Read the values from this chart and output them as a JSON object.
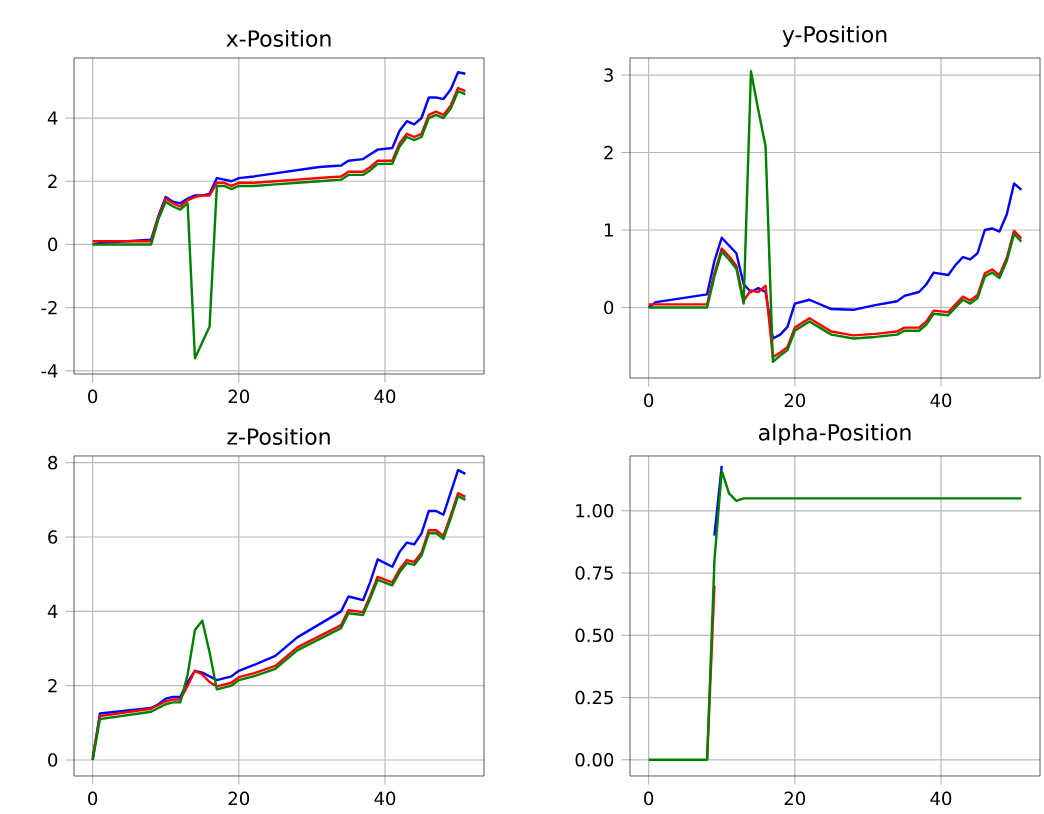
{
  "chart_data": [
    {
      "type": "line",
      "title": "x-Position",
      "grid": true,
      "xlim": [
        -2.55,
        53.55
      ],
      "ylim": [
        -4.1,
        5.9
      ],
      "xticks": [
        0,
        20,
        40
      ],
      "yticks": [
        -4,
        -2,
        0,
        2,
        4
      ],
      "x": [
        0,
        1,
        8,
        9,
        10,
        11,
        12,
        13,
        14,
        15,
        16,
        17,
        18,
        19,
        20,
        22,
        25,
        28,
        31,
        34,
        35,
        37,
        38,
        39,
        41,
        42,
        43,
        44,
        45,
        46,
        47,
        48,
        49,
        50,
        51
      ],
      "series": [
        {
          "color": "#0000ff",
          "values": [
            0,
            0.05,
            0.15,
            0.9,
            1.5,
            1.35,
            1.3,
            1.45,
            1.55,
            1.55,
            1.6,
            2.1,
            2.05,
            2.0,
            2.1,
            2.15,
            2.25,
            2.35,
            2.45,
            2.5,
            2.65,
            2.7,
            2.85,
            3.0,
            3.05,
            3.6,
            3.9,
            3.8,
            4.0,
            4.65,
            4.65,
            4.6,
            4.9,
            5.45,
            5.4
          ]
        },
        {
          "color": "#ff0000",
          "values": [
            0.1,
            0.1,
            0.1,
            0.85,
            1.45,
            1.3,
            1.2,
            1.4,
            1.5,
            1.55,
            1.55,
            1.95,
            1.95,
            1.85,
            1.95,
            1.95,
            2.0,
            2.05,
            2.1,
            2.15,
            2.3,
            2.3,
            2.45,
            2.65,
            2.65,
            3.2,
            3.5,
            3.4,
            3.5,
            4.1,
            4.2,
            4.1,
            4.4,
            4.95,
            4.85
          ]
        },
        {
          "color": "#008000",
          "values": [
            0,
            0,
            0,
            0.8,
            1.35,
            1.2,
            1.1,
            1.3,
            -3.6,
            -3.1,
            -2.6,
            1.85,
            1.85,
            1.75,
            1.85,
            1.85,
            1.9,
            1.95,
            2.0,
            2.05,
            2.2,
            2.2,
            2.35,
            2.55,
            2.55,
            3.1,
            3.4,
            3.3,
            3.4,
            4.0,
            4.1,
            4.0,
            4.3,
            4.85,
            4.75
          ]
        }
      ]
    },
    {
      "type": "line",
      "title": "y-Position",
      "grid": true,
      "xlim": [
        -2.55,
        53.55
      ],
      "ylim": [
        -0.91,
        3.22
      ],
      "xticks": [
        0,
        20,
        40
      ],
      "yticks": [
        0,
        1,
        2,
        3
      ],
      "x": [
        0,
        1,
        8,
        9,
        10,
        11,
        12,
        13,
        14,
        15,
        16,
        17,
        18,
        19,
        20,
        22,
        25,
        28,
        31,
        34,
        35,
        37,
        38,
        39,
        41,
        42,
        43,
        44,
        45,
        46,
        47,
        48,
        49,
        50,
        51
      ],
      "series": [
        {
          "color": "#0000ff",
          "values": [
            0,
            0.07,
            0.17,
            0.6,
            0.9,
            0.8,
            0.7,
            0.3,
            0.2,
            0.25,
            0.2,
            -0.4,
            -0.35,
            -0.25,
            0.05,
            0.1,
            -0.02,
            -0.03,
            0.03,
            0.08,
            0.15,
            0.2,
            0.3,
            0.45,
            0.42,
            0.55,
            0.65,
            0.62,
            0.7,
            1.0,
            1.02,
            0.98,
            1.2,
            1.6,
            1.52
          ]
        },
        {
          "color": "#ff0000",
          "values": [
            0.04,
            0.04,
            0.04,
            0.44,
            0.76,
            0.66,
            0.54,
            0.09,
            0.22,
            0.2,
            0.28,
            -0.64,
            -0.58,
            -0.51,
            -0.26,
            -0.14,
            -0.31,
            -0.36,
            -0.34,
            -0.31,
            -0.26,
            -0.26,
            -0.18,
            -0.04,
            -0.06,
            0.04,
            0.14,
            0.09,
            0.16,
            0.44,
            0.49,
            0.42,
            0.64,
            0.99,
            0.89
          ]
        },
        {
          "color": "#008000",
          "values": [
            0,
            0,
            0,
            0.4,
            0.72,
            0.62,
            0.5,
            0.05,
            3.05,
            2.55,
            2.08,
            -0.7,
            -0.62,
            -0.55,
            -0.3,
            -0.18,
            -0.35,
            -0.4,
            -0.38,
            -0.35,
            -0.3,
            -0.3,
            -0.22,
            -0.08,
            -0.1,
            0.0,
            0.1,
            0.05,
            0.12,
            0.4,
            0.45,
            0.38,
            0.6,
            0.95,
            0.85
          ]
        }
      ]
    },
    {
      "type": "line",
      "title": "z-Position",
      "grid": true,
      "xlim": [
        -2.55,
        53.55
      ],
      "ylim": [
        -0.43,
        8.18
      ],
      "xticks": [
        0,
        20,
        40
      ],
      "yticks": [
        0,
        2,
        4,
        6,
        8
      ],
      "x": [
        0,
        1,
        8,
        9,
        10,
        11,
        12,
        13,
        14,
        15,
        16,
        17,
        18,
        19,
        20,
        22,
        25,
        28,
        31,
        34,
        35,
        37,
        38,
        39,
        41,
        42,
        43,
        44,
        45,
        46,
        47,
        48,
        49,
        50,
        51
      ],
      "series": [
        {
          "color": "#0000ff",
          "values": [
            0,
            1.25,
            1.4,
            1.5,
            1.65,
            1.7,
            1.7,
            2.1,
            2.4,
            2.35,
            2.25,
            2.15,
            2.2,
            2.25,
            2.4,
            2.55,
            2.8,
            3.3,
            3.65,
            4.0,
            4.4,
            4.3,
            4.8,
            5.4,
            5.2,
            5.6,
            5.85,
            5.8,
            6.1,
            6.7,
            6.7,
            6.6,
            7.2,
            7.8,
            7.7
          ]
        },
        {
          "color": "#ff0000",
          "values": [
            0.08,
            1.18,
            1.38,
            1.48,
            1.58,
            1.63,
            1.63,
            2.0,
            2.4,
            2.3,
            2.1,
            1.98,
            2.03,
            2.08,
            2.23,
            2.33,
            2.53,
            3.03,
            3.33,
            3.63,
            4.03,
            3.98,
            4.43,
            4.93,
            4.78,
            5.13,
            5.38,
            5.33,
            5.58,
            6.18,
            6.18,
            6.03,
            6.58,
            7.18,
            7.08
          ]
        },
        {
          "color": "#008000",
          "values": [
            0,
            1.1,
            1.3,
            1.4,
            1.5,
            1.55,
            1.55,
            2.3,
            3.5,
            3.75,
            2.9,
            1.9,
            1.95,
            2.0,
            2.15,
            2.25,
            2.45,
            2.95,
            3.25,
            3.55,
            3.95,
            3.9,
            4.35,
            4.85,
            4.7,
            5.05,
            5.3,
            5.25,
            5.5,
            6.1,
            6.1,
            5.95,
            6.5,
            7.1,
            7.0
          ]
        }
      ]
    },
    {
      "type": "line",
      "title": "alpha-Position",
      "grid": true,
      "xlim": [
        -2.55,
        53.55
      ],
      "ylim": [
        -0.065,
        1.22
      ],
      "xticks": [
        0,
        20,
        40
      ],
      "yticks": [
        {
          "value": 0,
          "label": "0.00"
        },
        {
          "value": 0.25,
          "label": "0.25"
        },
        {
          "value": 0.5,
          "label": "0.50"
        },
        {
          "value": 0.75,
          "label": "0.75"
        },
        {
          "value": 1.0,
          "label": "1.00"
        }
      ],
      "x": [
        0,
        1,
        8,
        9,
        10,
        11,
        12,
        13,
        14,
        15,
        16,
        17,
        18,
        19,
        20,
        22,
        25,
        28,
        31,
        34,
        35,
        37,
        38,
        39,
        41,
        42,
        43,
        44,
        45,
        46,
        47,
        48,
        49,
        50,
        51
      ],
      "series": [
        {
          "color": "#0000ff",
          "values": [
            null,
            null,
            null,
            0.9,
            1.18,
            null,
            null,
            null,
            null,
            null,
            null,
            null,
            null,
            null,
            null,
            null,
            null,
            null,
            null,
            null,
            null,
            null,
            null,
            null,
            null,
            null,
            null,
            null,
            null,
            null,
            null,
            null,
            null,
            null,
            null
          ]
        },
        {
          "color": "#ff0000",
          "values": [
            null,
            null,
            0,
            0.7,
            null,
            null,
            null,
            null,
            null,
            null,
            null,
            null,
            null,
            null,
            null,
            null,
            null,
            null,
            null,
            null,
            null,
            null,
            null,
            null,
            null,
            null,
            null,
            null,
            null,
            null,
            null,
            null,
            null,
            null,
            null
          ]
        },
        {
          "color": "#008000",
          "values": [
            0,
            0,
            0,
            0.8,
            1.16,
            1.07,
            1.04,
            1.05,
            1.05,
            1.05,
            1.05,
            1.05,
            1.05,
            1.05,
            1.05,
            1.05,
            1.05,
            1.05,
            1.05,
            1.05,
            1.05,
            1.05,
            1.05,
            1.05,
            1.05,
            1.05,
            1.05,
            1.05,
            1.05,
            1.05,
            1.05,
            1.05,
            1.05,
            1.05,
            1.05
          ]
        }
      ]
    }
  ]
}
